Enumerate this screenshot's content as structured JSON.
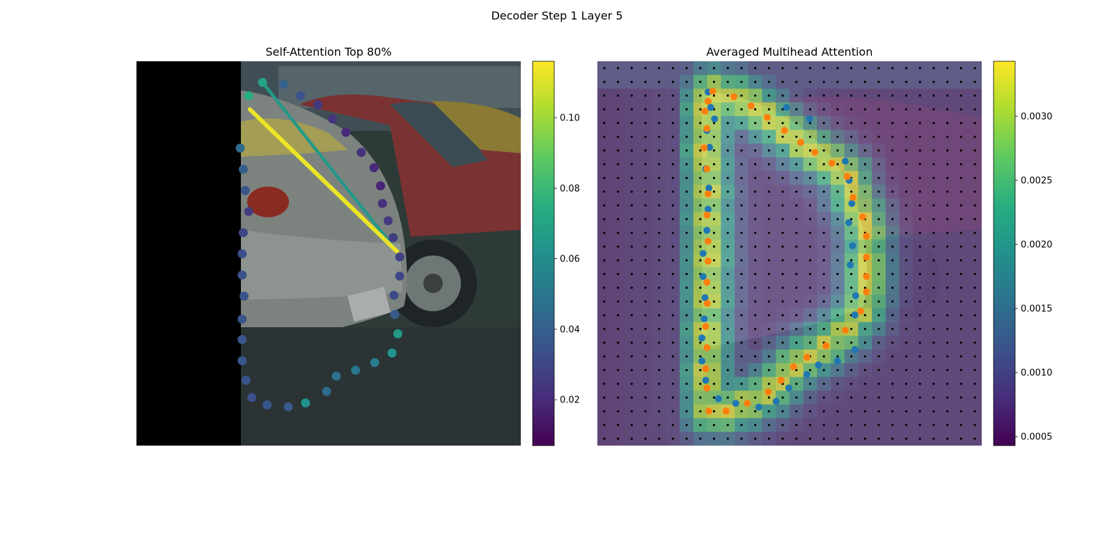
{
  "figure": {
    "title": "Decoder Step 1 Layer 5"
  },
  "chart_data": [
    {
      "type": "scatter",
      "title": "Self-Attention Top 80%",
      "xlim": [
        0,
        1
      ],
      "ylim": [
        0,
        1
      ],
      "colormap": "viridis",
      "colorbar": {
        "min": 0.007,
        "max": 0.116,
        "ticks": [
          0.02,
          0.04,
          0.06,
          0.08,
          0.1
        ],
        "tick_labels": [
          "0.02",
          "0.04",
          "0.06",
          "0.08",
          "0.10"
        ]
      },
      "background": "street photo with parked cars, left region masked black",
      "points": [
        {
          "x": 0.292,
          "y": 0.09,
          "v": 0.075
        },
        {
          "x": 0.328,
          "y": 0.055,
          "v": 0.07
        },
        {
          "x": 0.383,
          "y": 0.06,
          "v": 0.04
        },
        {
          "x": 0.427,
          "y": 0.09,
          "v": 0.035
        },
        {
          "x": 0.472,
          "y": 0.113,
          "v": 0.025
        },
        {
          "x": 0.51,
          "y": 0.15,
          "v": 0.023
        },
        {
          "x": 0.545,
          "y": 0.185,
          "v": 0.02
        },
        {
          "x": 0.585,
          "y": 0.237,
          "v": 0.022
        },
        {
          "x": 0.618,
          "y": 0.277,
          "v": 0.02
        },
        {
          "x": 0.635,
          "y": 0.324,
          "v": 0.018
        },
        {
          "x": 0.64,
          "y": 0.37,
          "v": 0.022
        },
        {
          "x": 0.655,
          "y": 0.415,
          "v": 0.025
        },
        {
          "x": 0.668,
          "y": 0.459,
          "v": 0.027
        },
        {
          "x": 0.685,
          "y": 0.509,
          "v": 0.028
        },
        {
          "x": 0.685,
          "y": 0.559,
          "v": 0.03
        },
        {
          "x": 0.67,
          "y": 0.609,
          "v": 0.032
        },
        {
          "x": 0.672,
          "y": 0.659,
          "v": 0.038
        },
        {
          "x": 0.68,
          "y": 0.709,
          "v": 0.065
        },
        {
          "x": 0.665,
          "y": 0.759,
          "v": 0.062
        },
        {
          "x": 0.62,
          "y": 0.784,
          "v": 0.052
        },
        {
          "x": 0.57,
          "y": 0.804,
          "v": 0.05
        },
        {
          "x": 0.52,
          "y": 0.819,
          "v": 0.048
        },
        {
          "x": 0.495,
          "y": 0.859,
          "v": 0.045
        },
        {
          "x": 0.44,
          "y": 0.889,
          "v": 0.062
        },
        {
          "x": 0.395,
          "y": 0.899,
          "v": 0.038
        },
        {
          "x": 0.34,
          "y": 0.894,
          "v": 0.036
        },
        {
          "x": 0.3,
          "y": 0.875,
          "v": 0.033
        },
        {
          "x": 0.285,
          "y": 0.83,
          "v": 0.035
        },
        {
          "x": 0.275,
          "y": 0.779,
          "v": 0.036
        },
        {
          "x": 0.275,
          "y": 0.724,
          "v": 0.036
        },
        {
          "x": 0.275,
          "y": 0.671,
          "v": 0.036
        },
        {
          "x": 0.28,
          "y": 0.611,
          "v": 0.035
        },
        {
          "x": 0.275,
          "y": 0.556,
          "v": 0.034
        },
        {
          "x": 0.275,
          "y": 0.501,
          "v": 0.033
        },
        {
          "x": 0.278,
          "y": 0.446,
          "v": 0.03
        },
        {
          "x": 0.292,
          "y": 0.391,
          "v": 0.026
        },
        {
          "x": 0.283,
          "y": 0.336,
          "v": 0.035
        },
        {
          "x": 0.278,
          "y": 0.281,
          "v": 0.04
        },
        {
          "x": 0.27,
          "y": 0.226,
          "v": 0.045
        }
      ],
      "attention_lines": [
        {
          "from": {
            "x": 0.295,
            "y": 0.125
          },
          "to": {
            "x": 0.678,
            "y": 0.495
          },
          "v": 0.113
        },
        {
          "from": {
            "x": 0.328,
            "y": 0.055
          },
          "to": {
            "x": 0.678,
            "y": 0.495
          },
          "v": 0.065
        }
      ]
    },
    {
      "type": "heatmap",
      "title": "Averaged Multihead Attention",
      "xlim": [
        0,
        1
      ],
      "ylim": [
        0,
        1
      ],
      "colormap": "viridis",
      "colorbar": {
        "min": 0.00043,
        "max": 0.00343,
        "ticks": [
          0.0005,
          0.001,
          0.0015,
          0.002,
          0.0025,
          0.003
        ],
        "tick_labels": [
          "0.0005",
          "0.0010",
          "0.0015",
          "0.0020",
          "0.0025",
          "0.0030"
        ]
      },
      "grid": {
        "rows": 28,
        "cols": 28
      },
      "series": [
        {
          "color": "#1f77b4",
          "points": [
            [
              0.288,
              0.08
            ],
            [
              0.295,
              0.12
            ],
            [
              0.305,
              0.15
            ],
            [
              0.285,
              0.18
            ],
            [
              0.292,
              0.224
            ],
            [
              0.282,
              0.28
            ],
            [
              0.29,
              0.33
            ],
            [
              0.288,
              0.385
            ],
            [
              0.285,
              0.44
            ],
            [
              0.275,
              0.5
            ],
            [
              0.275,
              0.56
            ],
            [
              0.28,
              0.615
            ],
            [
              0.278,
              0.67
            ],
            [
              0.272,
              0.72
            ],
            [
              0.272,
              0.78
            ],
            [
              0.282,
              0.83
            ],
            [
              0.315,
              0.878
            ],
            [
              0.36,
              0.89
            ],
            [
              0.42,
              0.9
            ],
            [
              0.465,
              0.885
            ],
            [
              0.498,
              0.85
            ],
            [
              0.545,
              0.815
            ],
            [
              0.575,
              0.79
            ],
            [
              0.625,
              0.78
            ],
            [
              0.67,
              0.75
            ],
            [
              0.67,
              0.66
            ],
            [
              0.672,
              0.61
            ],
            [
              0.658,
              0.53
            ],
            [
              0.664,
              0.48
            ],
            [
              0.654,
              0.42
            ],
            [
              0.662,
              0.37
            ],
            [
              0.655,
              0.31
            ],
            [
              0.645,
              0.26
            ],
            [
              0.552,
              0.15
            ],
            [
              0.492,
              0.12
            ]
          ]
        },
        {
          "color": "#ff7f0e",
          "points": [
            [
              0.3,
              0.078
            ],
            [
              0.288,
              0.104
            ],
            [
              0.355,
              0.092
            ],
            [
              0.4,
              0.116
            ],
            [
              0.442,
              0.146
            ],
            [
              0.487,
              0.18
            ],
            [
              0.529,
              0.211
            ],
            [
              0.566,
              0.237
            ],
            [
              0.61,
              0.265
            ],
            [
              0.65,
              0.3
            ],
            [
              0.665,
              0.354
            ],
            [
              0.69,
              0.405
            ],
            [
              0.7,
              0.455
            ],
            [
              0.7,
              0.51
            ],
            [
              0.7,
              0.56
            ],
            [
              0.7,
              0.6
            ],
            [
              0.685,
              0.65
            ],
            [
              0.645,
              0.7
            ],
            [
              0.595,
              0.74
            ],
            [
              0.545,
              0.77
            ],
            [
              0.51,
              0.795
            ],
            [
              0.478,
              0.83
            ],
            [
              0.445,
              0.86
            ],
            [
              0.39,
              0.89
            ],
            [
              0.335,
              0.91
            ],
            [
              0.29,
              0.91
            ],
            [
              0.285,
              0.85
            ],
            [
              0.282,
              0.8
            ],
            [
              0.285,
              0.745
            ],
            [
              0.282,
              0.69
            ],
            [
              0.286,
              0.63
            ],
            [
              0.285,
              0.575
            ],
            [
              0.288,
              0.52
            ],
            [
              0.288,
              0.468
            ],
            [
              0.285,
              0.4
            ],
            [
              0.288,
              0.345
            ],
            [
              0.285,
              0.28
            ],
            [
              0.278,
              0.225
            ],
            [
              0.285,
              0.175
            ],
            [
              0.28,
              0.13
            ]
          ]
        }
      ]
    }
  ]
}
